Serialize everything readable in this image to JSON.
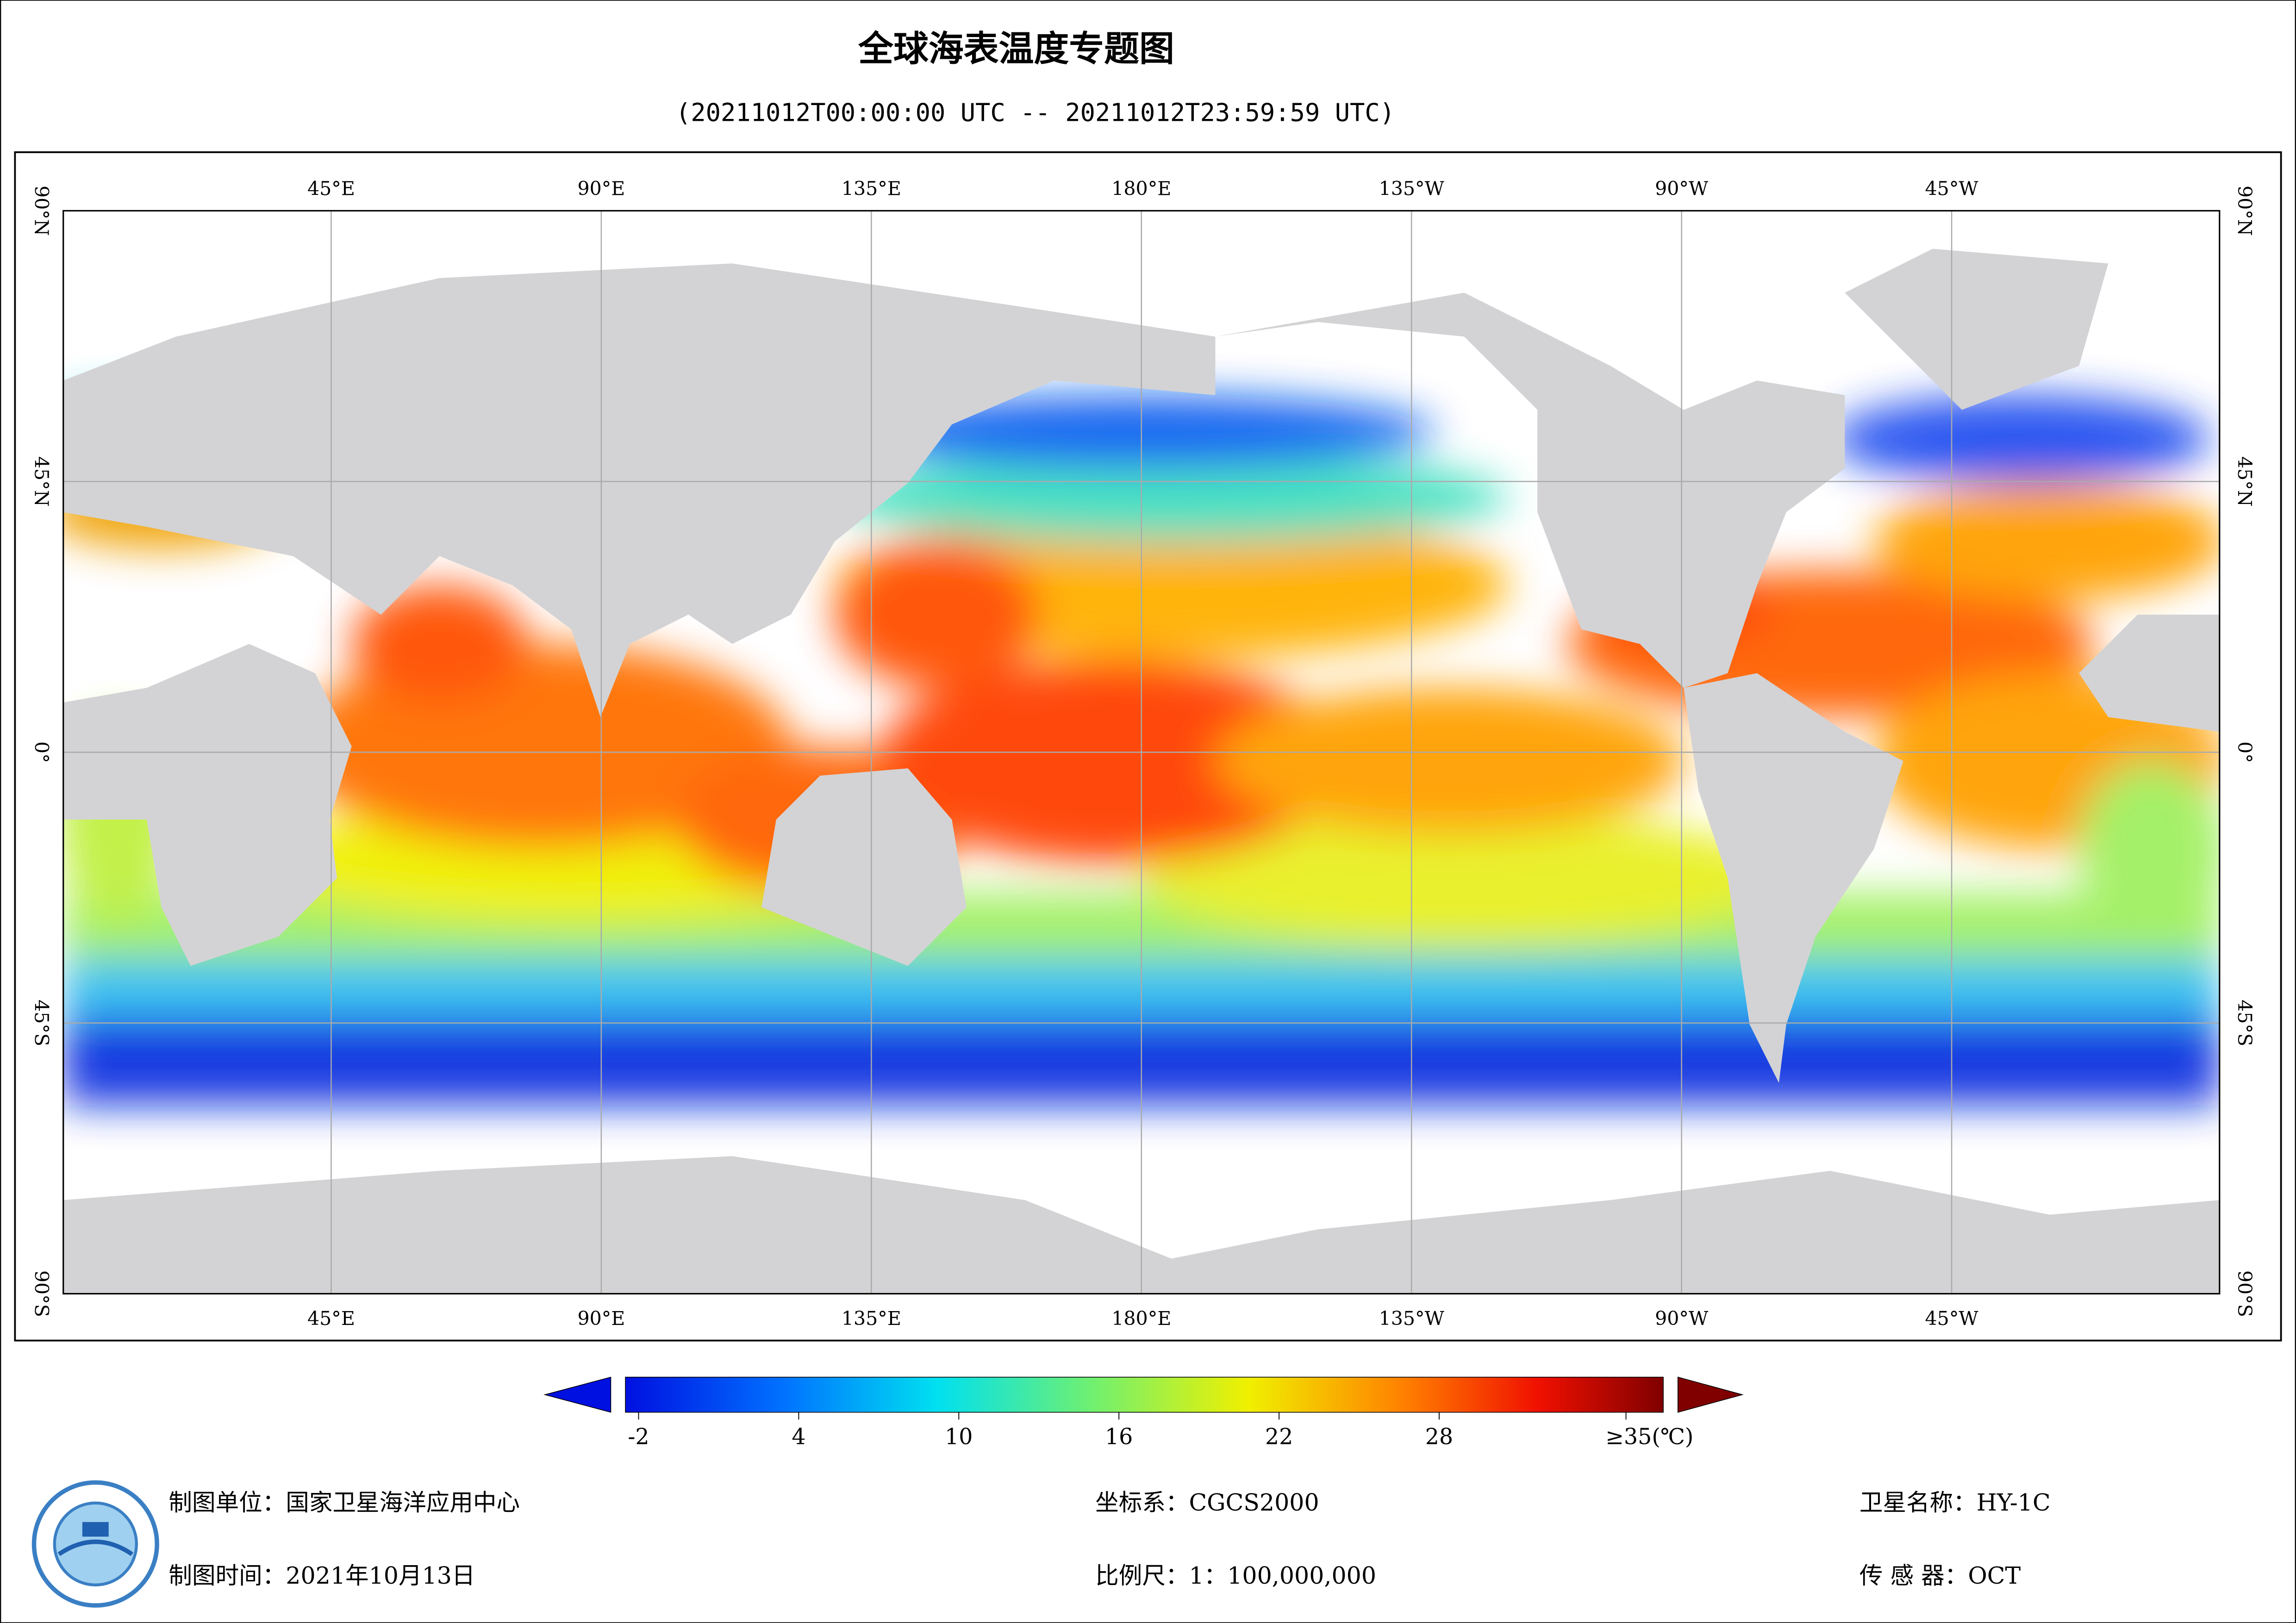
{
  "title": "全球海表温度专题图",
  "subtitle": "(20211012T00:00:00 UTC -- 20211012T23:59:59 UTC)",
  "lon_labels": [
    "45°E",
    "90°E",
    "135°E",
    "180°E",
    "135°W",
    "90°W",
    "45°W"
  ],
  "lat_labels": [
    "90°N",
    "45°N",
    "0°",
    "45°S",
    "90°S"
  ],
  "colorbar": {
    "ticks": [
      -2,
      4,
      10,
      16,
      22,
      28,
      {
        "value": 35,
        "label": "≥35(℃)"
      }
    ]
  },
  "footer": {
    "producer": "制图单位：国家卫星海洋应用中心",
    "date": "制图时间：2021年10月13日",
    "crs": "坐标系：CGCS2000",
    "scale": "比例尺：1：100,000,000",
    "satellite": "卫星名称：HY-1C",
    "sensor": "传 感 器：OCT"
  }
}
